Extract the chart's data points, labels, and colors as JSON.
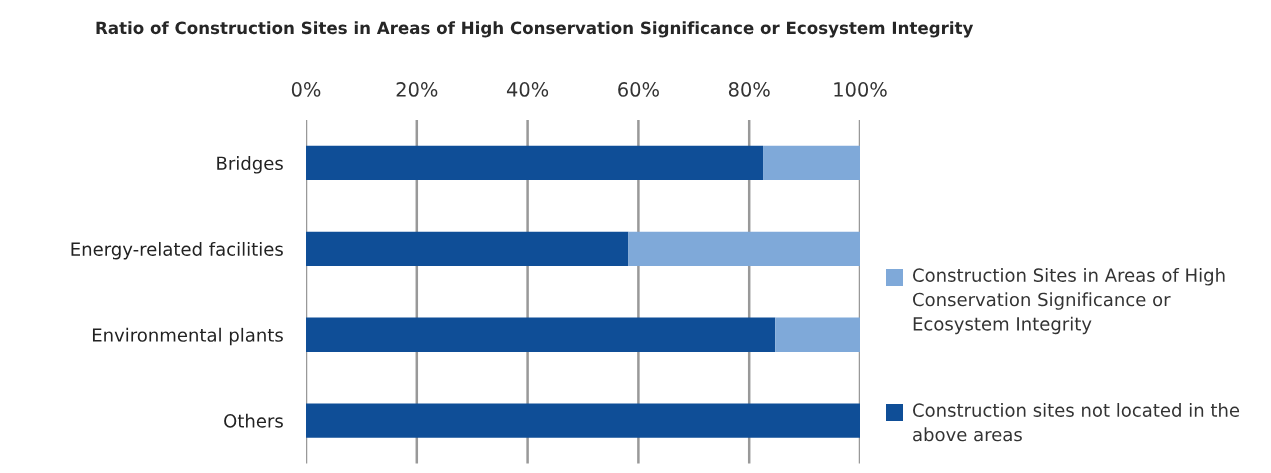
{
  "chart_data": {
    "type": "bar",
    "orientation": "horizontal",
    "stacked": true,
    "title": "Ratio of Construction Sites in Areas of High Conservation Significance or Ecosystem Integrity",
    "categories": [
      "Bridges",
      "Energy-related facilities",
      "Environmental plants",
      "Others"
    ],
    "series": [
      {
        "name": "Construction sites not located in the above areas",
        "color": "#0f4e97",
        "values": [
          82.5,
          58.2,
          84.7,
          100
        ]
      },
      {
        "name": "Construction Sites in Areas of High Conservation Significance or Ecosystem Integrity",
        "color": "#7fa9d9",
        "values": [
          17.5,
          41.8,
          15.3,
          null
        ]
      }
    ],
    "xlim": [
      0,
      100
    ],
    "xticks": [
      {
        "value": 0,
        "label": "0%"
      },
      {
        "value": 20,
        "label": "20%"
      },
      {
        "value": 40,
        "label": "40%"
      },
      {
        "value": 60,
        "label": "60%"
      },
      {
        "value": 80,
        "label": "80%"
      },
      {
        "value": 100,
        "label": "100%"
      }
    ],
    "grid": "x",
    "legend": "right"
  }
}
